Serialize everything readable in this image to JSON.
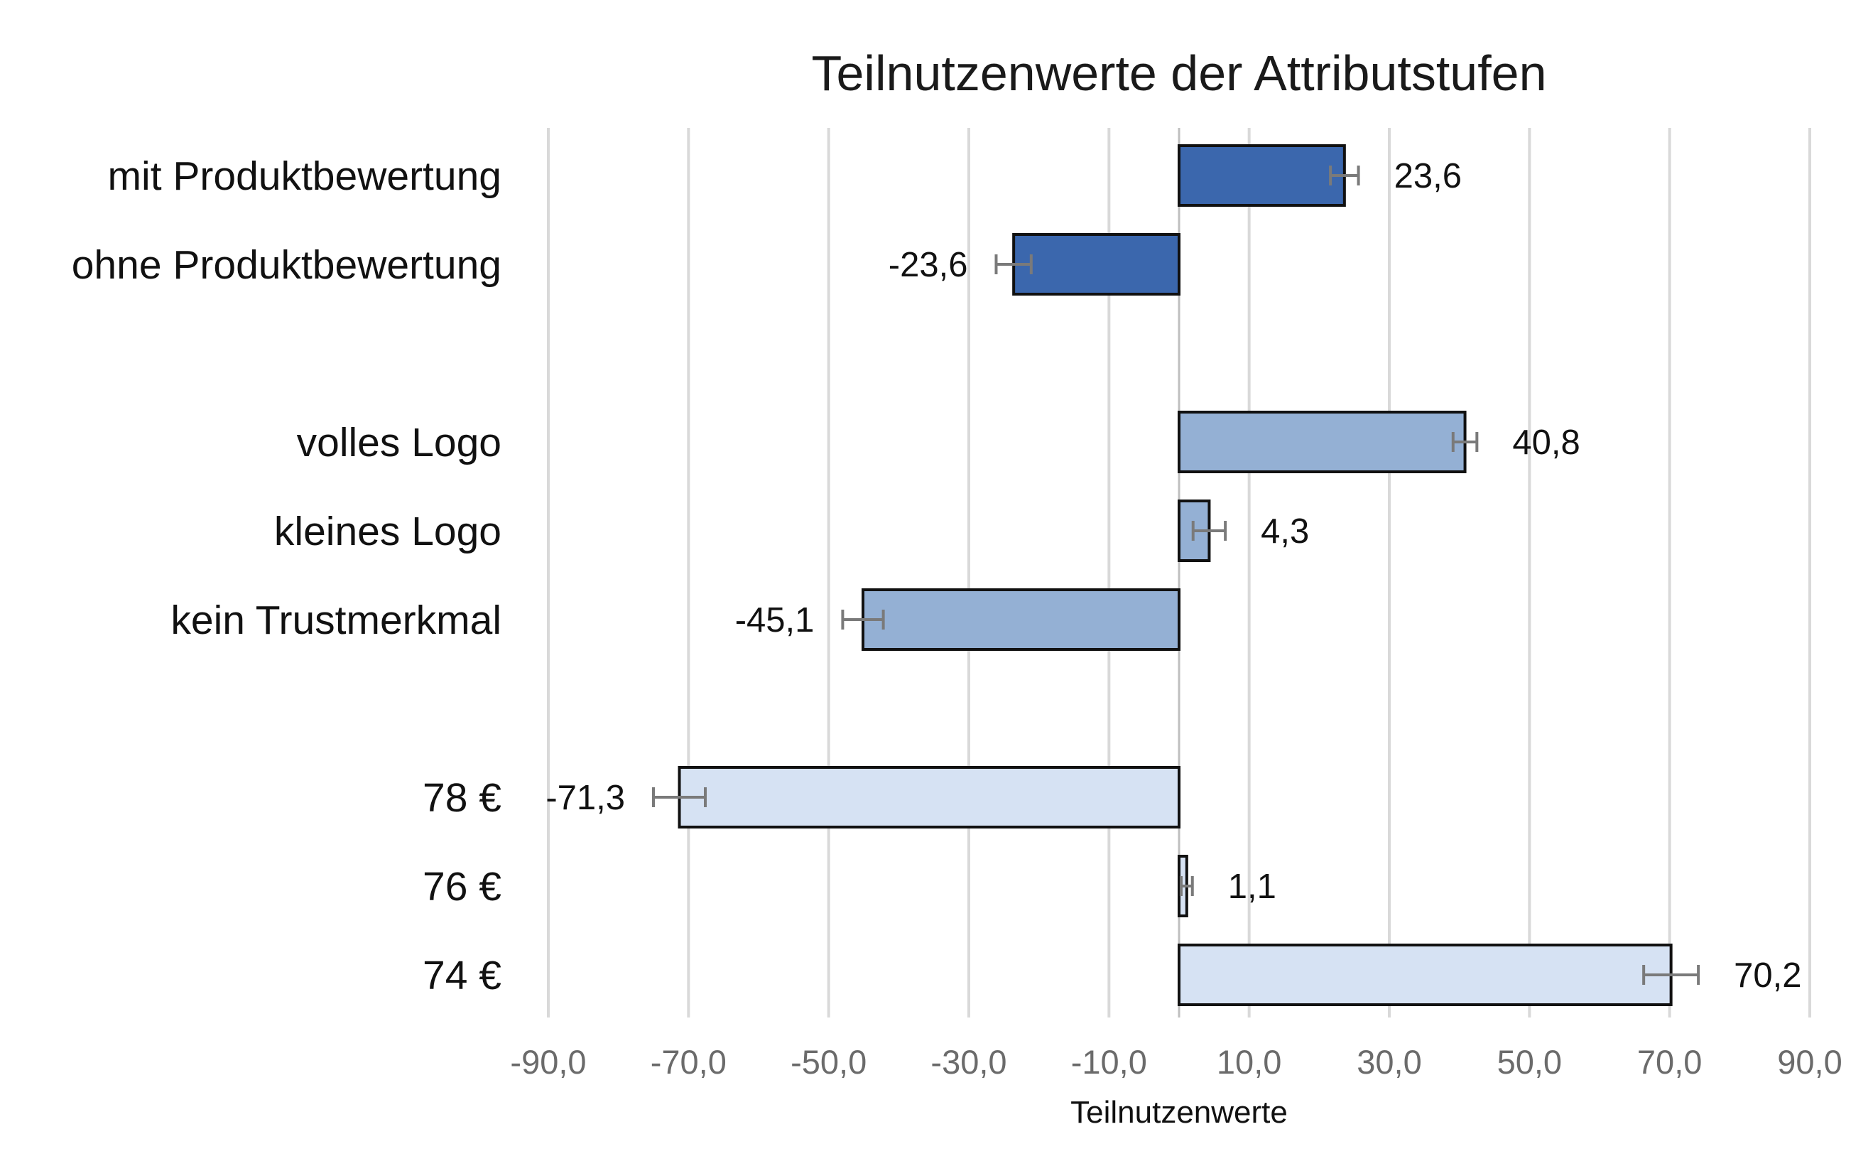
{
  "chart_data": {
    "type": "bar",
    "orientation": "horizontal",
    "title": "Teilnutzenwerte der Attributstufen",
    "xlabel": "Teilnutzenwerte",
    "ylabel": "",
    "xlim": [
      -90,
      90
    ],
    "xticks": [
      -90,
      -70,
      -50,
      -30,
      -10,
      10,
      30,
      50,
      70,
      90
    ],
    "xtick_labels": [
      "-90,0",
      "-70,0",
      "-50,0",
      "-30,0",
      "-10,0",
      "10,0",
      "30,0",
      "50,0",
      "70,0",
      "90,0"
    ],
    "grid": true,
    "legend": "none",
    "groups": [
      {
        "color": "#3b67ad",
        "items": [
          {
            "category": "mit Produktbewertung",
            "value": 23.6,
            "label": "23,6",
            "error": 2.0
          },
          {
            "category": "ohne Produktbewertung",
            "value": -23.6,
            "label": "-23,6",
            "error": 2.5
          }
        ]
      },
      {
        "color": "#94b0d4",
        "items": [
          {
            "category": "volles Logo",
            "value": 40.8,
            "label": "40,8",
            "error": 1.7
          },
          {
            "category": "kleines Logo",
            "value": 4.3,
            "label": "4,3",
            "error": 2.3
          },
          {
            "category": "kein Trustmerkmal",
            "value": -45.1,
            "label": "-45,1",
            "error": 2.9
          }
        ]
      },
      {
        "color": "#d6e2f3",
        "items": [
          {
            "category": "78 €",
            "value": -71.3,
            "label": "-71,3",
            "error": 3.7
          },
          {
            "category": "76 €",
            "value": 1.1,
            "label": "1,1",
            "error": 0.8
          },
          {
            "category": "74 €",
            "value": 70.2,
            "label": "70,2",
            "error": 3.9
          }
        ]
      }
    ]
  }
}
